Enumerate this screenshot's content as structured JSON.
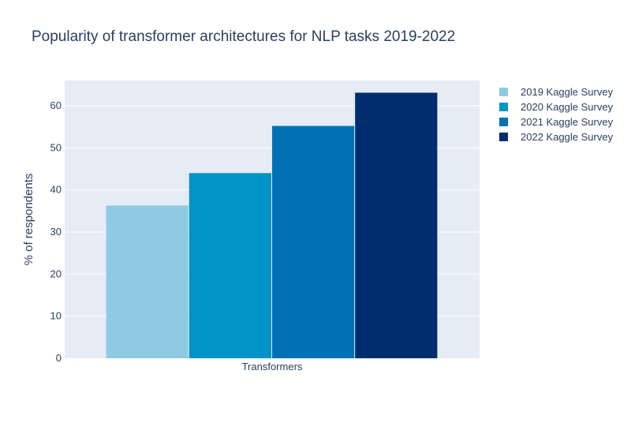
{
  "chart_data": {
    "type": "bar",
    "title": "Popularity of transformer architectures for NLP tasks 2019-2022",
    "xlabel": "",
    "ylabel": "% of respondents",
    "categories": [
      "Transformers"
    ],
    "ylim": [
      0,
      66
    ],
    "yticks": [
      0,
      10,
      20,
      30,
      40,
      50,
      60
    ],
    "grid": true,
    "legend_position": "right",
    "series": [
      {
        "name": "2019 Kaggle Survey",
        "color": "#8ecbe3",
        "values": [
          36.3
        ]
      },
      {
        "name": "2020 Kaggle Survey",
        "color": "#0093c8",
        "values": [
          44.0
        ]
      },
      {
        "name": "2021 Kaggle Survey",
        "color": "#0171b5",
        "values": [
          55.2
        ]
      },
      {
        "name": "2022 Kaggle Survey",
        "color": "#002d6d",
        "values": [
          63.1
        ]
      }
    ]
  }
}
